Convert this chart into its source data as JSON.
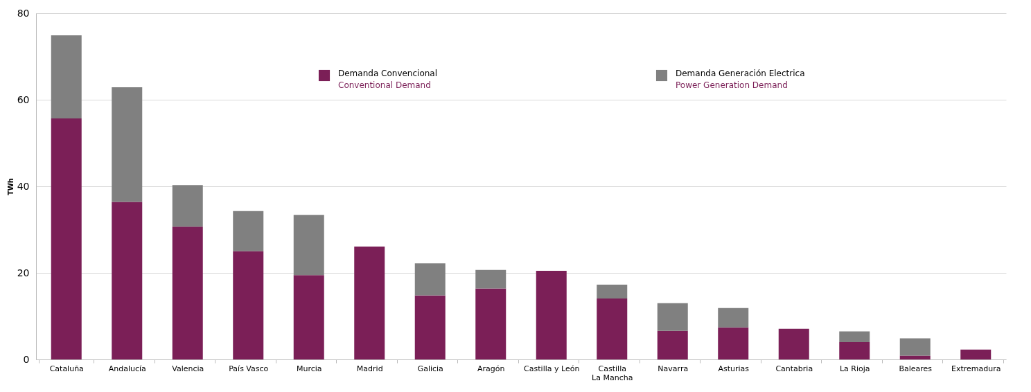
{
  "chart_data": {
    "type": "bar",
    "stacked": true,
    "ylabel": "TWh",
    "categories": [
      "Cataluña",
      "Andalucía",
      "Valencia",
      "País Vasco",
      "Murcia",
      "Madrid",
      "Galicia",
      "Aragón",
      "Castilla y León",
      "Castilla\nLa Mancha",
      "Navarra",
      "Asturias",
      "Cantabria",
      "La Rioja",
      "Baleares",
      "Extremadura"
    ],
    "series": [
      {
        "name": "Demanda Convencional\nConventional Demand",
        "color": "#7b1f57",
        "values": [
          55.7,
          36.4,
          30.7,
          25.0,
          19.5,
          26.1,
          14.8,
          16.4,
          20.5,
          14.1,
          6.6,
          7.4,
          7.1,
          4.0,
          0.9,
          2.3
        ]
      },
      {
        "name": "Demanda Generación Electrica\nPower Generation Demand",
        "color": "#808080",
        "values": [
          19.2,
          26.5,
          9.6,
          9.3,
          13.9,
          null,
          7.4,
          4.3,
          null,
          3.2,
          6.4,
          4.5,
          null,
          2.5,
          4.0,
          null
        ]
      }
    ],
    "ylim": [
      0,
      80
    ],
    "yticks": [
      0,
      20,
      40,
      60,
      80
    ],
    "grid": "y",
    "legend": "top"
  }
}
